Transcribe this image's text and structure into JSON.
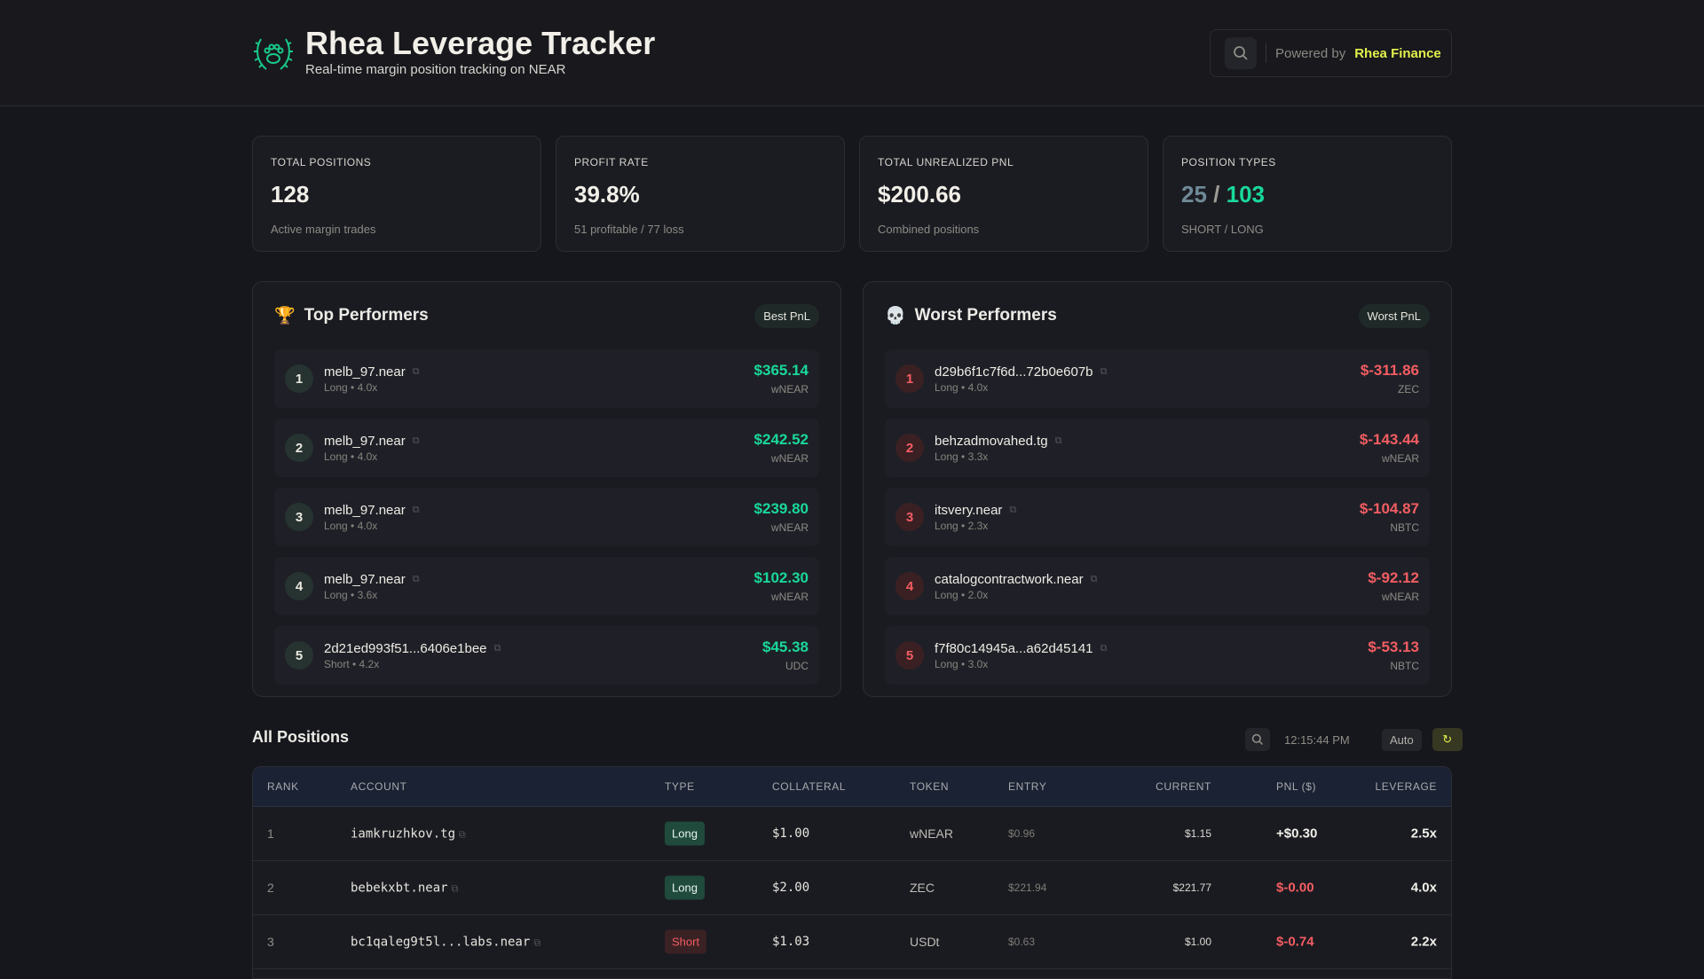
{
  "header": {
    "title": "Rhea Leverage Tracker",
    "subtitle": "Real-time margin position tracking on NEAR",
    "powered_by": "Powered by",
    "brand": "Rhea Finance"
  },
  "stats": [
    {
      "label": "TOTAL POSITIONS",
      "value": "128",
      "sub": "Active margin trades"
    },
    {
      "label": "PROFIT RATE",
      "value": "39.8%",
      "sub": "51 profitable / 77 loss"
    },
    {
      "label": "TOTAL UNREALIZED PNL",
      "value": "$200.66",
      "sub": "Combined positions"
    },
    {
      "label": "POSITION TYPES",
      "short": "25",
      "slash": "/",
      "long": "103",
      "sub": "SHORT / LONG"
    }
  ],
  "top": {
    "title": "Top Performers",
    "badge": "Best PnL",
    "rows": [
      {
        "rank": "1",
        "account": "melb_97.near",
        "meta": "Long • 4.0x",
        "pnl": "$365.14",
        "token": "wNEAR"
      },
      {
        "rank": "2",
        "account": "melb_97.near",
        "meta": "Long • 4.0x",
        "pnl": "$242.52",
        "token": "wNEAR"
      },
      {
        "rank": "3",
        "account": "melb_97.near",
        "meta": "Long • 4.0x",
        "pnl": "$239.80",
        "token": "wNEAR"
      },
      {
        "rank": "4",
        "account": "melb_97.near",
        "meta": "Long • 3.6x",
        "pnl": "$102.30",
        "token": "wNEAR"
      },
      {
        "rank": "5",
        "account": "2d21ed993f51...6406e1bee",
        "meta": "Short • 4.2x",
        "pnl": "$45.38",
        "token": "UDC"
      }
    ]
  },
  "worst": {
    "title": "Worst Performers",
    "badge": "Worst PnL",
    "rows": [
      {
        "rank": "1",
        "account": "d29b6f1c7f6d...72b0e607b",
        "meta": "Long • 4.0x",
        "pnl": "$-311.86",
        "token": "ZEC"
      },
      {
        "rank": "2",
        "account": "behzadmovahed.tg",
        "meta": "Long • 3.3x",
        "pnl": "$-143.44",
        "token": "wNEAR"
      },
      {
        "rank": "3",
        "account": "itsvery.near",
        "meta": "Long • 2.3x",
        "pnl": "$-104.87",
        "token": "NBTC"
      },
      {
        "rank": "4",
        "account": "catalogcontractwork.near",
        "meta": "Long • 2.0x",
        "pnl": "$-92.12",
        "token": "wNEAR"
      },
      {
        "rank": "5",
        "account": "f7f80c14945a...a62d45141",
        "meta": "Long • 3.0x",
        "pnl": "$-53.13",
        "token": "NBTC"
      }
    ]
  },
  "positions": {
    "title": "All Positions",
    "time": "12:15:44 PM",
    "auto": "Auto",
    "refresh": "↻",
    "columns": [
      "RANK",
      "ACCOUNT",
      "TYPE",
      "COLLATERAL",
      "TOKEN",
      "ENTRY",
      "CURRENT",
      "PNL ($)",
      "LEVERAGE"
    ],
    "rows": [
      {
        "rank": "1",
        "account": "iamkruzhkov.tg",
        "type": "Long",
        "collateral": "$1.00",
        "token": "wNEAR",
        "entry": "$0.96",
        "current": "$1.15",
        "pnl": "+$0.30",
        "leverage": "2.5x"
      },
      {
        "rank": "2",
        "account": "bebekxbt.near",
        "type": "Long",
        "collateral": "$2.00",
        "token": "ZEC",
        "entry": "$221.94",
        "current": "$221.77",
        "pnl": "$-0.00",
        "leverage": "4.0x"
      },
      {
        "rank": "3",
        "account": "bc1qaleg9t5l...labs.near",
        "type": "Short",
        "collateral": "$1.03",
        "token": "USDt",
        "entry": "$0.63",
        "current": "$1.00",
        "pnl": "$-0.74",
        "leverage": "2.2x"
      }
    ]
  },
  "colors": {
    "accent": "#e3f04b",
    "profit": "#19d89a",
    "loss": "#f35d62",
    "bg": "#16171c"
  }
}
